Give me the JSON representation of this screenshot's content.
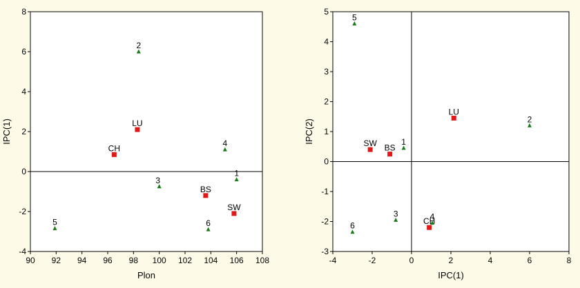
{
  "chart_data": [
    {
      "type": "scatter",
      "xlabel": "Plon",
      "ylabel": "IPC(1)",
      "xlim": [
        90,
        108
      ],
      "ylim": [
        -4,
        8
      ],
      "xticks": [
        90,
        92,
        94,
        96,
        98,
        100,
        102,
        104,
        106,
        108
      ],
      "yticks": [
        -4,
        -2,
        0,
        2,
        4,
        6,
        8
      ],
      "grid": false,
      "reference_lines": {
        "y": 0
      },
      "series": [
        {
          "marker": "triangle",
          "color": "#1a7a1a",
          "points": [
            {
              "label": "1",
              "x": 106.0,
              "y": -0.4
            },
            {
              "label": "2",
              "x": 98.4,
              "y": 6.0
            },
            {
              "label": "3",
              "x": 100.0,
              "y": -0.75
            },
            {
              "label": "4",
              "x": 105.1,
              "y": 1.1
            },
            {
              "label": "5",
              "x": 91.9,
              "y": -2.85
            },
            {
              "label": "6",
              "x": 103.8,
              "y": -2.9
            }
          ]
        },
        {
          "marker": "square",
          "color": "#e01818",
          "points": [
            {
              "label": "CH",
              "x": 96.5,
              "y": 0.85
            },
            {
              "label": "LU",
              "x": 98.3,
              "y": 2.1
            },
            {
              "label": "BS",
              "x": 103.6,
              "y": -1.2
            },
            {
              "label": "SW",
              "x": 105.8,
              "y": -2.1
            }
          ]
        }
      ]
    },
    {
      "type": "scatter",
      "xlabel": "IPC(1)",
      "ylabel": "IPC(2)",
      "xlim": [
        -4,
        8
      ],
      "ylim": [
        -3,
        5
      ],
      "xticks": [
        -4,
        -2,
        0,
        2,
        4,
        6,
        8
      ],
      "yticks": [
        -3,
        -2,
        -1,
        0,
        1,
        2,
        3,
        4,
        5
      ],
      "grid": false,
      "reference_lines": {
        "x": 0,
        "y": 0
      },
      "series": [
        {
          "marker": "triangle",
          "color": "#1a7a1a",
          "points": [
            {
              "label": "1",
              "x": -0.4,
              "y": 0.45
            },
            {
              "label": "2",
              "x": 6.0,
              "y": 1.2
            },
            {
              "label": "3",
              "x": -0.8,
              "y": -1.95
            },
            {
              "label": "4",
              "x": 1.05,
              "y": -2.05
            },
            {
              "label": "5",
              "x": -2.9,
              "y": 4.6
            },
            {
              "label": "6",
              "x": -3.0,
              "y": -2.35
            }
          ]
        },
        {
          "marker": "square",
          "color": "#e01818",
          "points": [
            {
              "label": "SW",
              "x": -2.1,
              "y": 0.4
            },
            {
              "label": "BS",
              "x": -1.1,
              "y": 0.25
            },
            {
              "label": "LU",
              "x": 2.15,
              "y": 1.45
            },
            {
              "label": "CH",
              "x": 0.9,
              "y": -2.2
            }
          ]
        }
      ]
    }
  ]
}
